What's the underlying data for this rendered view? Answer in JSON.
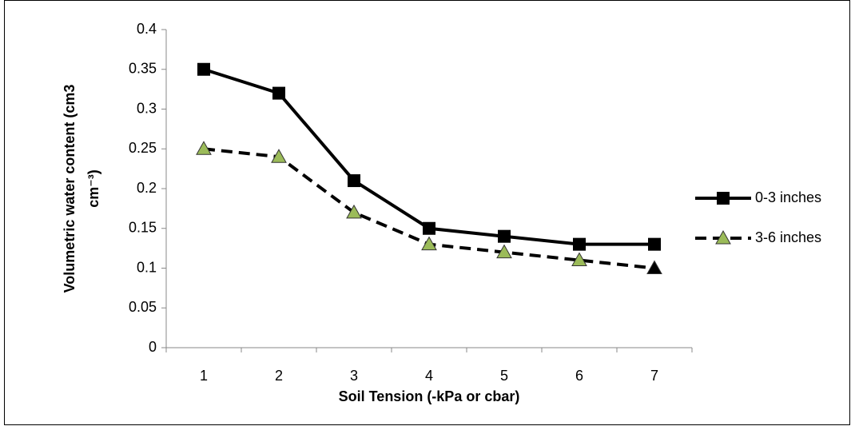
{
  "chart_data": {
    "type": "line",
    "xlabel": "Soil Tension (-kPa or cbar)",
    "ylabel_lines": [
      "Volumetric water content (cm3",
      "cm⁻³)"
    ],
    "categories": [
      "1",
      "2",
      "3",
      "4",
      "5",
      "6",
      "7"
    ],
    "series": [
      {
        "name": "0-3 inches",
        "color": "#000000",
        "dash": false,
        "marker": "square",
        "marker_color": "#000000",
        "values": [
          0.35,
          0.32,
          0.21,
          0.15,
          0.14,
          0.13,
          0.13
        ]
      },
      {
        "name": "3-6 inches",
        "color": "#000000",
        "dash": true,
        "marker": "triangle",
        "marker_colors": [
          "#9bbb59",
          "#9bbb59",
          "#9bbb59",
          "#9bbb59",
          "#9bbb59",
          "#9bbb59",
          "#000000"
        ],
        "values": [
          0.25,
          0.24,
          0.17,
          0.13,
          0.12,
          0.11,
          0.1
        ]
      }
    ],
    "ylim": [
      0,
      0.4
    ],
    "yticks": [
      0,
      0.05,
      0.1,
      0.15,
      0.2,
      0.25,
      0.3,
      0.35,
      0.4
    ],
    "legend": "right"
  }
}
